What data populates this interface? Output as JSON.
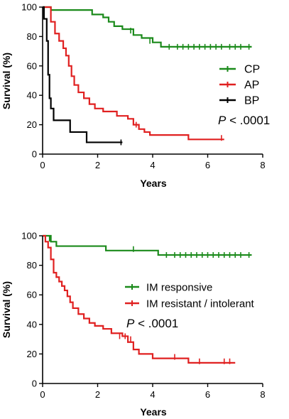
{
  "chart_data": [
    {
      "type": "line",
      "step": true,
      "xlabel": "Years",
      "ylabel": "Survival (%)",
      "xlim": [
        0,
        8
      ],
      "ylim": [
        0,
        100
      ],
      "xticks": [
        0,
        2,
        4,
        6,
        8
      ],
      "yticks": [
        0,
        20,
        40,
        60,
        80,
        100
      ],
      "legend_position": "right",
      "annotation": {
        "italic": "P",
        "rest": " < .0001"
      },
      "series": [
        {
          "name": "CP",
          "color": "#1b8a1b",
          "points": [
            [
              0,
              100
            ],
            [
              0.3,
              98
            ],
            [
              1.8,
              95
            ],
            [
              2.2,
              93
            ],
            [
              2.4,
              90
            ],
            [
              2.6,
              87
            ],
            [
              2.9,
              85
            ],
            [
              3.3,
              81
            ],
            [
              3.6,
              79
            ],
            [
              4.0,
              76
            ],
            [
              4.3,
              73
            ],
            [
              7.6,
              73
            ]
          ],
          "censors": [
            [
              3.2,
              84
            ],
            [
              3.9,
              77
            ],
            [
              4.6,
              73
            ],
            [
              4.9,
              73
            ],
            [
              5.1,
              73
            ],
            [
              5.3,
              73
            ],
            [
              5.5,
              73
            ],
            [
              5.7,
              73
            ],
            [
              5.9,
              73
            ],
            [
              6.1,
              73
            ],
            [
              6.3,
              73
            ],
            [
              6.5,
              73
            ],
            [
              6.8,
              73
            ],
            [
              7.0,
              73
            ],
            [
              7.2,
              73
            ],
            [
              7.5,
              73
            ]
          ]
        },
        {
          "name": "AP",
          "color": "#e02020",
          "points": [
            [
              0,
              100
            ],
            [
              0.3,
              90
            ],
            [
              0.45,
              82
            ],
            [
              0.6,
              77
            ],
            [
              0.75,
              72
            ],
            [
              0.85,
              67
            ],
            [
              0.95,
              60
            ],
            [
              1.05,
              53
            ],
            [
              1.15,
              47
            ],
            [
              1.3,
              42
            ],
            [
              1.5,
              38
            ],
            [
              1.7,
              34
            ],
            [
              1.9,
              31
            ],
            [
              2.2,
              29
            ],
            [
              2.7,
              26
            ],
            [
              3.1,
              24
            ],
            [
              3.3,
              20
            ],
            [
              3.5,
              17
            ],
            [
              3.7,
              15
            ],
            [
              3.9,
              13
            ],
            [
              5.3,
              10
            ],
            [
              6.6,
              10
            ]
          ],
          "censors": [
            [
              3.4,
              20
            ],
            [
              6.5,
              11
            ]
          ]
        },
        {
          "name": "BP",
          "color": "#000000",
          "points": [
            [
              0,
              100
            ],
            [
              0.05,
              92
            ],
            [
              0.15,
              77
            ],
            [
              0.2,
              54
            ],
            [
              0.25,
              38
            ],
            [
              0.3,
              31
            ],
            [
              0.4,
              23
            ],
            [
              1.0,
              15
            ],
            [
              1.6,
              8
            ],
            [
              2.9,
              8
            ]
          ],
          "censors": [
            [
              2.85,
              8
            ]
          ]
        }
      ]
    },
    {
      "type": "line",
      "step": true,
      "xlabel": "Years",
      "ylabel": "Survival (%)",
      "xlim": [
        0,
        8
      ],
      "ylim": [
        0,
        100
      ],
      "xticks": [
        0,
        2,
        4,
        6,
        8
      ],
      "yticks": [
        0,
        20,
        40,
        60,
        80,
        100
      ],
      "legend_position": "right",
      "annotation": {
        "italic": "P",
        "rest": " < .0001"
      },
      "series": [
        {
          "name": "IM responsive",
          "color": "#1b8a1b",
          "points": [
            [
              0,
              100
            ],
            [
              0.3,
              96
            ],
            [
              0.5,
              93
            ],
            [
              2.3,
              90
            ],
            [
              4.2,
              87
            ],
            [
              7.6,
              87
            ]
          ],
          "censors": [
            [
              0.25,
              98
            ],
            [
              3.3,
              91
            ],
            [
              4.5,
              87
            ],
            [
              4.8,
              87
            ],
            [
              5.0,
              87
            ],
            [
              5.2,
              87
            ],
            [
              5.4,
              87
            ],
            [
              5.6,
              87
            ],
            [
              5.8,
              87
            ],
            [
              6.0,
              87
            ],
            [
              6.2,
              87
            ],
            [
              6.4,
              87
            ],
            [
              6.6,
              87
            ],
            [
              6.8,
              87
            ],
            [
              7.0,
              87
            ],
            [
              7.2,
              87
            ],
            [
              7.5,
              87
            ]
          ]
        },
        {
          "name": "IM resistant / intolerant",
          "color": "#e02020",
          "points": [
            [
              0,
              100
            ],
            [
              0.1,
              96
            ],
            [
              0.2,
              92
            ],
            [
              0.3,
              84
            ],
            [
              0.4,
              75
            ],
            [
              0.5,
              72
            ],
            [
              0.6,
              69
            ],
            [
              0.7,
              66
            ],
            [
              0.8,
              63
            ],
            [
              0.9,
              59
            ],
            [
              1.0,
              55
            ],
            [
              1.1,
              51
            ],
            [
              1.3,
              47
            ],
            [
              1.5,
              44
            ],
            [
              1.7,
              41
            ],
            [
              1.9,
              39
            ],
            [
              2.2,
              37
            ],
            [
              2.5,
              34
            ],
            [
              2.9,
              32
            ],
            [
              3.1,
              28
            ],
            [
              3.3,
              23
            ],
            [
              3.5,
              20
            ],
            [
              4.0,
              17
            ],
            [
              5.3,
              14
            ],
            [
              7.0,
              14
            ]
          ],
          "censors": [
            [
              2.8,
              32
            ],
            [
              3.0,
              32
            ],
            [
              3.2,
              30
            ],
            [
              4.8,
              18
            ],
            [
              5.7,
              15
            ],
            [
              6.6,
              15
            ],
            [
              6.8,
              15
            ]
          ]
        }
      ]
    }
  ]
}
